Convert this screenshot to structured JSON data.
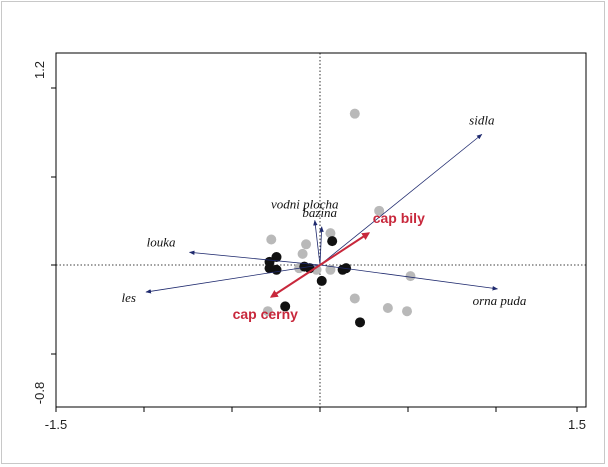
{
  "chart_data": {
    "type": "scatter",
    "title": "",
    "xlabel": "",
    "ylabel": "",
    "xlim": [
      -1.5,
      1.5
    ],
    "ylim": [
      -0.8,
      1.2
    ],
    "x_tick_labels": [
      "-1.5",
      "1.5"
    ],
    "y_tick_labels": [
      "-0.8",
      "1.2"
    ],
    "grid": false,
    "zero_lines": true,
    "colors": {
      "env_arrow": "#1f2a6e",
      "species_arrow": "#c8283c",
      "sample_black": "#111111",
      "sample_gray": "#b9b9b9"
    },
    "env_arrows": [
      {
        "label": "sidla",
        "x": 0.93,
        "y": 0.82
      },
      {
        "label": "vodni plocha",
        "x": -0.03,
        "y": 0.28
      },
      {
        "label": "bazina",
        "x": 0.01,
        "y": 0.24
      },
      {
        "label": "louka",
        "x": -0.75,
        "y": 0.08
      },
      {
        "label": "les",
        "x": -1.0,
        "y": -0.17
      },
      {
        "label": "orna puda",
        "x": 1.02,
        "y": -0.15
      }
    ],
    "species_arrows": [
      {
        "label": "cap bily",
        "x": 0.28,
        "y": 0.2
      },
      {
        "label": "cap cerny",
        "x": -0.28,
        "y": -0.2
      }
    ],
    "samples_black": [
      {
        "x": 0.07,
        "y": 0.15
      },
      {
        "x": -0.25,
        "y": 0.05
      },
      {
        "x": -0.29,
        "y": 0.02
      },
      {
        "x": -0.25,
        "y": -0.03
      },
      {
        "x": -0.29,
        "y": -0.02
      },
      {
        "x": -0.09,
        "y": -0.01
      },
      {
        "x": -0.06,
        "y": -0.02
      },
      {
        "x": 0.13,
        "y": -0.03
      },
      {
        "x": 0.15,
        "y": -0.02
      },
      {
        "x": 0.01,
        "y": -0.1
      },
      {
        "x": -0.2,
        "y": -0.26
      },
      {
        "x": 0.23,
        "y": -0.36
      }
    ],
    "samples_gray": [
      {
        "x": 0.2,
        "y": 0.95
      },
      {
        "x": 0.34,
        "y": 0.34
      },
      {
        "x": 0.06,
        "y": 0.2
      },
      {
        "x": -0.28,
        "y": 0.16
      },
      {
        "x": -0.08,
        "y": 0.13
      },
      {
        "x": -0.1,
        "y": 0.07
      },
      {
        "x": -0.12,
        "y": -0.02
      },
      {
        "x": -0.02,
        "y": -0.03
      },
      {
        "x": 0.06,
        "y": -0.03
      },
      {
        "x": 0.52,
        "y": -0.07
      },
      {
        "x": 0.2,
        "y": -0.21
      },
      {
        "x": 0.39,
        "y": -0.27
      },
      {
        "x": 0.5,
        "y": -0.29
      },
      {
        "x": -0.3,
        "y": -0.29
      }
    ]
  }
}
